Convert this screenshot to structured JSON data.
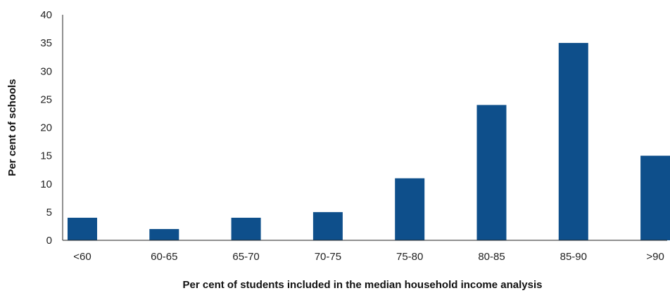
{
  "chart_data": {
    "type": "bar",
    "title": "",
    "xlabel": "Per cent of students included in the median household income analysis",
    "ylabel": "Per cent of schools",
    "categories": [
      "<60",
      "60-65",
      "65-70",
      "70-75",
      "75-80",
      "80-85",
      "85-90",
      ">90"
    ],
    "values": [
      4,
      2,
      4,
      5,
      11,
      24,
      35,
      15
    ],
    "ylim": [
      0,
      40
    ],
    "yticks": [
      0,
      5,
      10,
      15,
      20,
      25,
      30,
      35,
      40
    ],
    "grid": false,
    "bar_color": "#0e4f8b"
  }
}
